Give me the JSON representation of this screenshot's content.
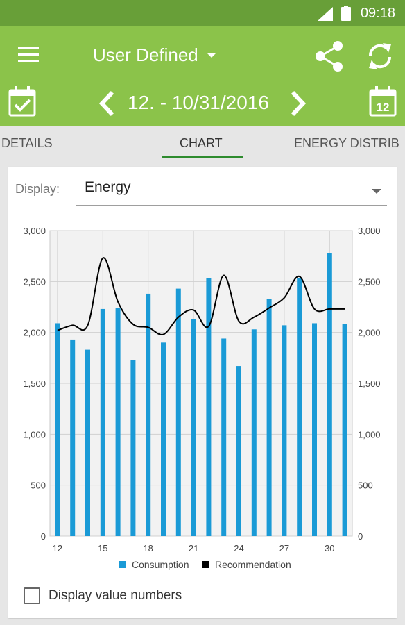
{
  "status_bar": {
    "time": "09:18"
  },
  "app_bar": {
    "period": "User Defined",
    "date_range": "12. - 10/31/2016"
  },
  "tabs": [
    {
      "label": "DETAILS"
    },
    {
      "label": "CHART"
    },
    {
      "label": "ENERGY DISTRIB"
    }
  ],
  "display": {
    "label": "Display:",
    "value": "Energy"
  },
  "display_values": {
    "label": "Display value numbers",
    "checked": false
  },
  "colors": {
    "appbar": "#8bc34a",
    "statusbar": "#689f38",
    "consumption": "#1a9ad6",
    "recommendation": "#000000",
    "tab_indicator": "#2e8b2e"
  },
  "chart_data": {
    "type": "bar",
    "x": [
      12,
      13,
      14,
      15,
      16,
      17,
      18,
      19,
      20,
      21,
      22,
      23,
      24,
      25,
      26,
      27,
      28,
      29,
      30,
      31
    ],
    "xticks": [
      "12",
      "15",
      "18",
      "21",
      "24",
      "27",
      "30"
    ],
    "yticks": [
      "0",
      "500",
      "1,000",
      "1,500",
      "2,000",
      "2,500",
      "3,000"
    ],
    "ylim": [
      0,
      3000
    ],
    "grid": true,
    "legend": "bottom",
    "series": [
      {
        "name": "Consumption",
        "type": "bar",
        "color": "#1a9ad6",
        "values": [
          2090,
          1930,
          1830,
          2230,
          2240,
          1730,
          2380,
          1900,
          2430,
          2130,
          2530,
          1940,
          1670,
          2030,
          2330,
          2070,
          2530,
          2090,
          2780,
          2080
        ]
      },
      {
        "name": "Recommendation",
        "type": "line",
        "color": "#000000",
        "values": [
          2020,
          2070,
          2070,
          2730,
          2300,
          2080,
          2050,
          1980,
          2150,
          2220,
          2060,
          2560,
          2110,
          2150,
          2240,
          2340,
          2550,
          2230,
          2230,
          2230
        ]
      }
    ]
  }
}
